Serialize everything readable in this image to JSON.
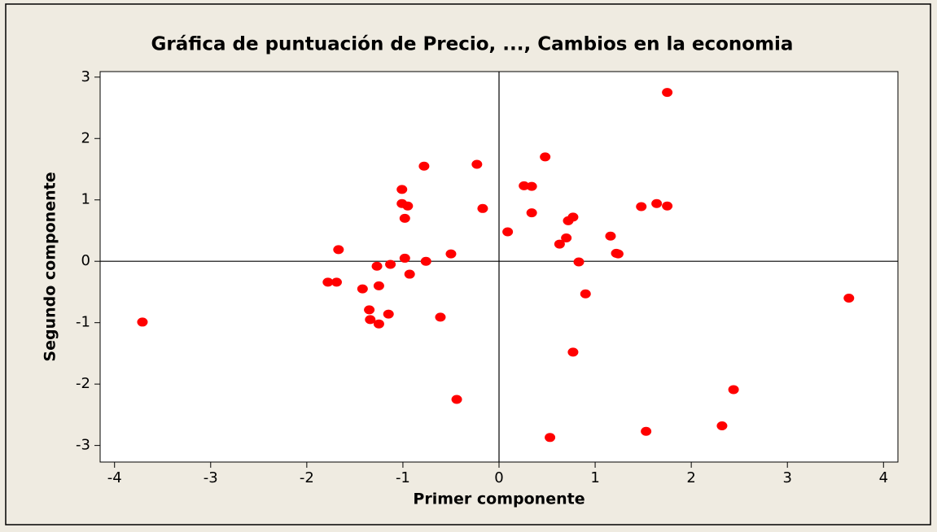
{
  "chart_data": {
    "type": "scatter",
    "title": "Gráfica de puntuación de Precio, ..., Cambios en la economia",
    "xlabel": "Primer componente",
    "ylabel": "Segundo componente",
    "xlim": [
      -4.15,
      4.15
    ],
    "ylim": [
      -3.27,
      3.09
    ],
    "xticks": [
      -4,
      -3,
      -2,
      -1,
      0,
      1,
      2,
      3,
      4
    ],
    "yticks": [
      -3,
      -2,
      -1,
      0,
      1,
      2,
      3
    ],
    "reference_x": 0,
    "reference_y": 0,
    "series": [
      {
        "color": "#ff0000",
        "x": [
          -3.71,
          1.75,
          3.64,
          0.48,
          -1.01,
          -1.01,
          -0.95,
          -0.98,
          -0.78,
          -0.23,
          -0.17,
          0.26,
          0.34,
          0.34,
          0.09,
          0.72,
          0.77,
          0.7,
          0.63,
          1.16,
          1.22,
          1.24,
          1.48,
          1.64,
          1.75,
          0.83,
          0.9,
          0.77,
          0.53,
          1.53,
          2.32,
          2.44,
          -0.44,
          -0.61,
          -0.5,
          -0.76,
          -0.98,
          -0.93,
          -1.13,
          -1.27,
          -1.25,
          -1.67,
          -1.78,
          -1.69,
          -1.42,
          -1.35,
          -1.34,
          -1.25,
          -1.15
        ],
        "values": [
          -0.99,
          2.75,
          -0.6,
          1.7,
          1.17,
          0.94,
          0.9,
          0.7,
          1.55,
          1.58,
          0.86,
          1.23,
          1.22,
          0.79,
          0.48,
          0.66,
          0.72,
          0.38,
          0.28,
          0.41,
          0.13,
          0.12,
          0.89,
          0.94,
          0.9,
          -0.01,
          -0.53,
          -1.48,
          -2.87,
          -2.77,
          -2.68,
          -2.09,
          -2.25,
          -0.91,
          0.12,
          0.0,
          0.05,
          -0.21,
          -0.05,
          -0.08,
          -0.4,
          0.19,
          -0.34,
          -0.34,
          -0.45,
          -0.79,
          -0.95,
          -1.02,
          -0.86
        ]
      }
    ]
  }
}
